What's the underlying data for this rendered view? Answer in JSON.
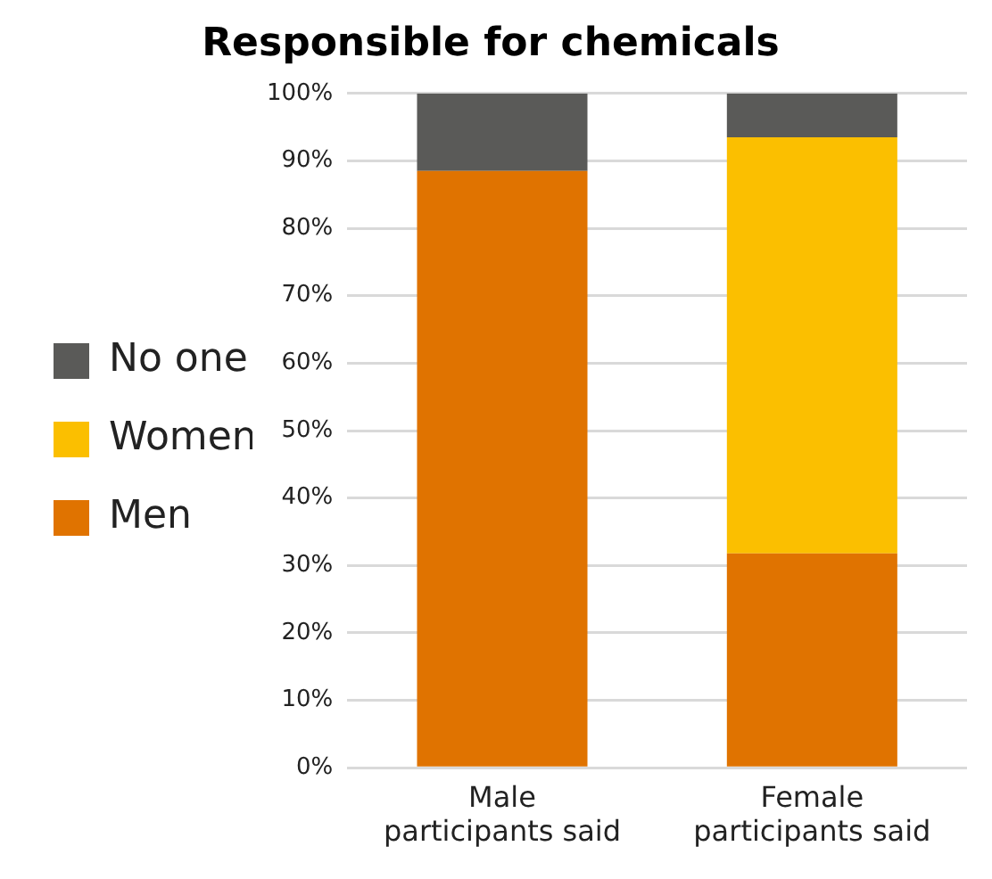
{
  "chart_data": {
    "type": "bar",
    "title": "Responsible for chemicals",
    "categories": [
      "Male participants said",
      "Female participants said"
    ],
    "stacked": true,
    "series": [
      {
        "name": "Men",
        "color": "#e07300",
        "values": [
          88.5,
          31.8
        ]
      },
      {
        "name": "Women",
        "color": "#fbbf00",
        "values": [
          0,
          61.7
        ]
      },
      {
        "name": "No one",
        "color": "#5a5a58",
        "values": [
          11.5,
          6.5
        ]
      }
    ],
    "ylim": [
      0,
      100
    ],
    "yticks": [
      {
        "value": 0,
        "label": "0%"
      },
      {
        "value": 10,
        "label": "10%"
      },
      {
        "value": 20,
        "label": "20%"
      },
      {
        "value": 30,
        "label": "30%"
      },
      {
        "value": 40,
        "label": "40%"
      },
      {
        "value": 50,
        "label": "50%"
      },
      {
        "value": 60,
        "label": "60%"
      },
      {
        "value": 70,
        "label": "70%"
      },
      {
        "value": 80,
        "label": "80%"
      },
      {
        "value": 90,
        "label": "90%"
      },
      {
        "value": 100,
        "label": "100%"
      }
    ],
    "grid": "y",
    "legend": "left"
  }
}
